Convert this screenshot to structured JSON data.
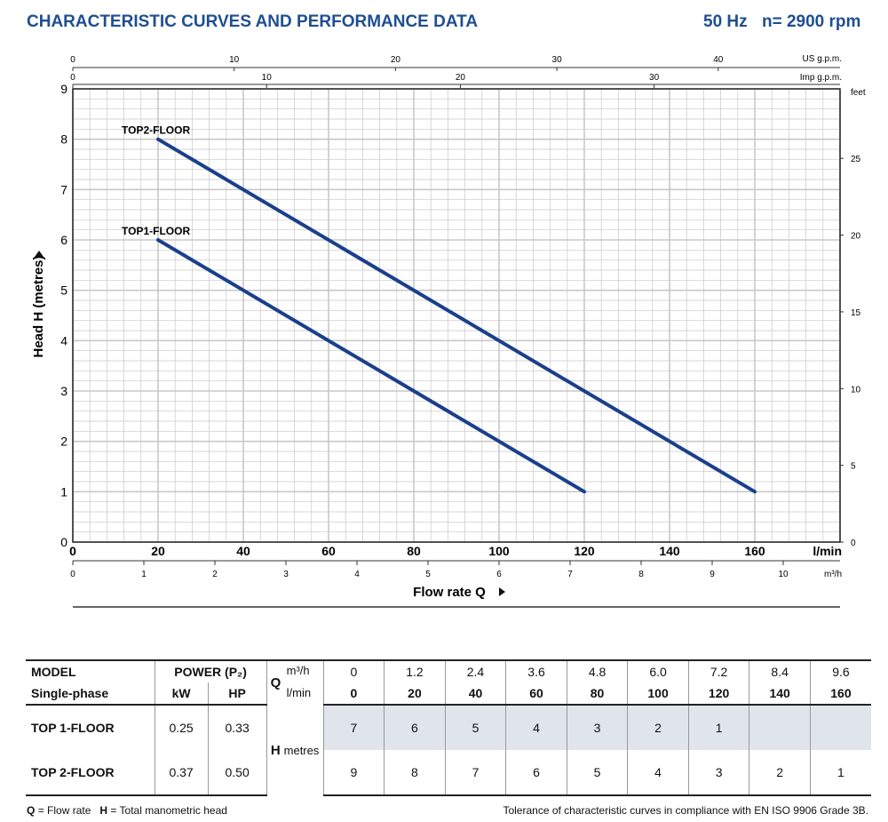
{
  "header": {
    "title": "CHARACTERISTIC CURVES AND PERFORMANCE DATA",
    "freq": "50 Hz",
    "rpm": "n= 2900 rpm"
  },
  "colors": {
    "title": "#1f4e92",
    "curve": "#1b3f8b",
    "grid": "#c8c8c8",
    "table_shade": "#dfe5ea"
  },
  "chart_data": {
    "type": "line",
    "x_unit": "l/min",
    "ylabel": "Head H  (metres)",
    "xlabel": "Flow rate  Q",
    "xlim": [
      0,
      180
    ],
    "ylim": [
      0,
      9
    ],
    "x_ticks": [
      0,
      20,
      40,
      60,
      80,
      100,
      120,
      140,
      160
    ],
    "y_ticks": [
      0,
      1,
      2,
      3,
      4,
      5,
      6,
      7,
      8,
      9
    ],
    "m3h_unit": "m³/h",
    "m3h_ticks": [
      0,
      1,
      2,
      3,
      4,
      5,
      6,
      7,
      8,
      9,
      10
    ],
    "usgpm_unit": "US g.p.m.",
    "usgpm_ticks": [
      0,
      10,
      20,
      30,
      40
    ],
    "impgpm_unit": "Imp g.p.m.",
    "impgpm_ticks": [
      0,
      10,
      20,
      30
    ],
    "feet_unit": "feet",
    "feet_ticks": [
      0,
      5,
      10,
      15,
      20,
      25
    ],
    "series": [
      {
        "name": "TOP1-FLOOR",
        "x": [
          20,
          120
        ],
        "y": [
          6,
          1
        ]
      },
      {
        "name": "TOP2-FLOOR",
        "x": [
          20,
          160
        ],
        "y": [
          8,
          1
        ]
      }
    ]
  },
  "table": {
    "model_label": "MODEL",
    "phase_label": "Single-phase",
    "power_label": "POWER (P₂)",
    "kw_label": "kW",
    "hp_label": "HP",
    "q_letter": "Q",
    "m3h_label": "m³/h",
    "lmin_label": "l/min",
    "h_letter": "H",
    "metres_label": "metres",
    "m3h_values": [
      "0",
      "1.2",
      "2.4",
      "3.6",
      "4.8",
      "6.0",
      "7.2",
      "8.4",
      "9.6"
    ],
    "lmin_values": [
      "0",
      "20",
      "40",
      "60",
      "80",
      "100",
      "120",
      "140",
      "160"
    ],
    "rows": [
      {
        "model": "TOP 1-FLOOR",
        "kw": "0.25",
        "hp": "0.33",
        "heads": [
          "7",
          "6",
          "5",
          "4",
          "3",
          "2",
          "1",
          "",
          ""
        ]
      },
      {
        "model": "TOP 2-FLOOR",
        "kw": "0.37",
        "hp": "0.50",
        "heads": [
          "9",
          "8",
          "7",
          "6",
          "5",
          "4",
          "3",
          "2",
          "1"
        ]
      }
    ]
  },
  "footer": {
    "q_letter": "Q",
    "q_def": "= Flow rate",
    "h_letter": "H",
    "h_def": "= Total manometric head",
    "tolerance": "Tolerance of characteristic curves in compliance with EN ISO 9906 Grade 3B."
  }
}
